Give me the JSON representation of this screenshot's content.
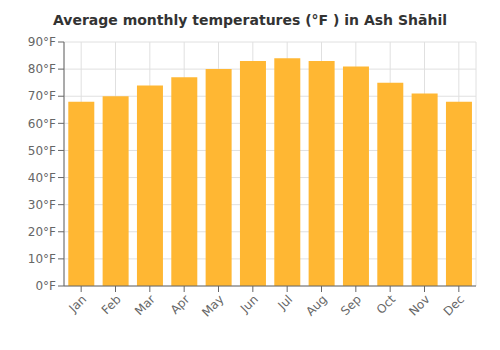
{
  "chart_data": {
    "type": "bar",
    "title": "Average monthly temperatures (°F ) in Ash Shāhil",
    "categories": [
      "Jan",
      "Feb",
      "Mar",
      "Apr",
      "May",
      "Jun",
      "Jul",
      "Aug",
      "Sep",
      "Oct",
      "Nov",
      "Dec"
    ],
    "values": [
      68,
      70,
      74,
      77,
      80,
      83,
      84,
      83,
      81,
      75,
      71,
      68
    ],
    "color": "#FFB733",
    "ylim": [
      0,
      90
    ],
    "yticks": [
      {
        "value": 0,
        "label": "0°F"
      },
      {
        "value": 10,
        "label": "10°F"
      },
      {
        "value": 20,
        "label": "20°F"
      },
      {
        "value": 30,
        "label": "30°F"
      },
      {
        "value": 40,
        "label": "40°F"
      },
      {
        "value": 50,
        "label": "50°F"
      },
      {
        "value": 60,
        "label": "60°F"
      },
      {
        "value": 70,
        "label": "70°F"
      },
      {
        "value": 80,
        "label": "80°F"
      },
      {
        "value": 90,
        "label": "90°F"
      }
    ],
    "grid": true
  }
}
